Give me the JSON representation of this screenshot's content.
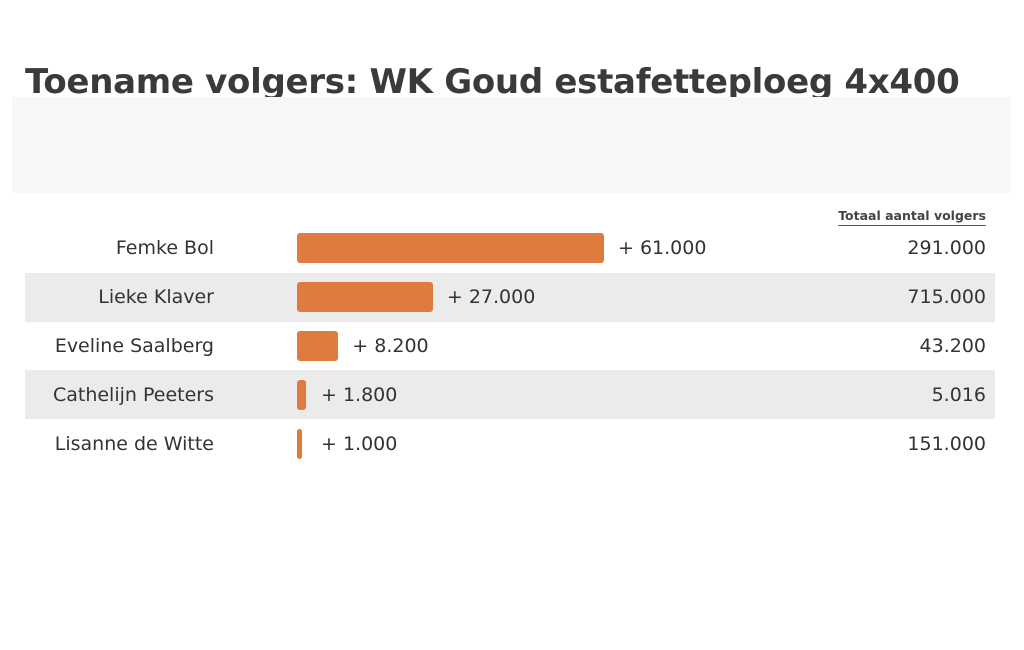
{
  "chart_data": {
    "type": "bar",
    "orientation": "horizontal",
    "title": "Toename volgers: WK Goud estafetteploeg 4x400",
    "categories": [
      "Femke Bol",
      "Lieke Klaver",
      "Eveline Saalberg",
      "Cathelijn Peeters",
      "Lisanne de Witte"
    ],
    "series": [
      {
        "values": [
          61000,
          27000,
          8200,
          1800,
          1000
        ]
      }
    ],
    "value_labels": [
      "+ 61.000",
      "+ 27.000",
      "+ 8.200",
      "+ 1.800",
      "+ 1.000"
    ],
    "total_column": {
      "header": "Totaal aantal volgers",
      "values": [
        "291.000",
        "715.000",
        "43.200",
        "5.016",
        "151.000"
      ]
    },
    "xlim": [
      0,
      61000
    ],
    "grid": false,
    "legend": "none"
  },
  "colors": {
    "bar": "#e07b3f",
    "row_shade": "#ebebeb",
    "title": "#3a3a3a"
  }
}
